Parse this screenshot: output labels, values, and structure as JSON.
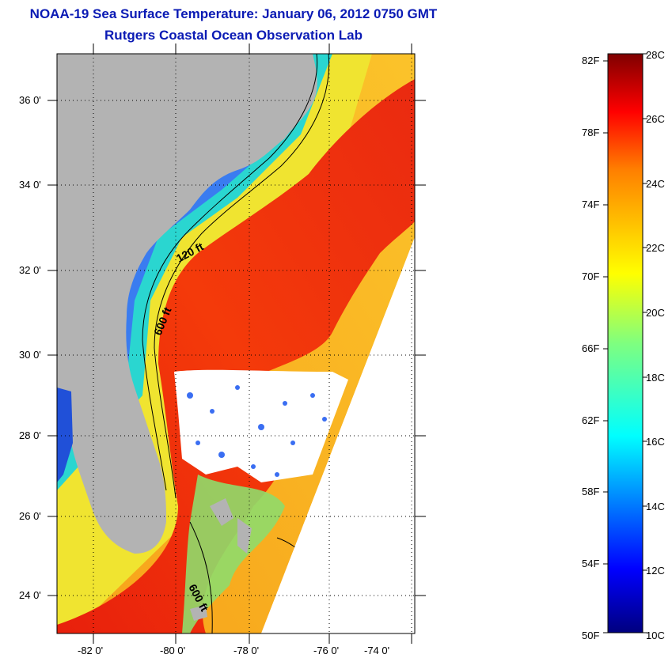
{
  "header": {
    "title": "NOAA-19 Sea Surface Temperature:  January 06, 2012 0750 GMT",
    "subtitle": "Rutgers Coastal Ocean Observation Lab"
  },
  "map": {
    "lat_labels": [
      "36 0'",
      "34 0'",
      "32 0'",
      "30 0'",
      "28 0'",
      "26 0'",
      "24 0'"
    ],
    "lon_labels": [
      "-82 0'",
      "-80 0'",
      "-78 0'",
      "-76 0'",
      "-74 0'"
    ],
    "contour_labels": [
      "120 ft",
      "600 ft",
      "600 ft"
    ],
    "colors": {
      "land": "#b3b3b3",
      "no_data": "#ffffff"
    }
  },
  "colorbar": {
    "fahrenheit_labels": [
      "82F",
      "78F",
      "74F",
      "70F",
      "66F",
      "62F",
      "58F",
      "54F",
      "50F"
    ],
    "celsius_labels": [
      "28C",
      "26C",
      "24C",
      "22C",
      "20C",
      "18C",
      "16C",
      "14C",
      "12C",
      "10C"
    ],
    "colormap": "jet"
  }
}
